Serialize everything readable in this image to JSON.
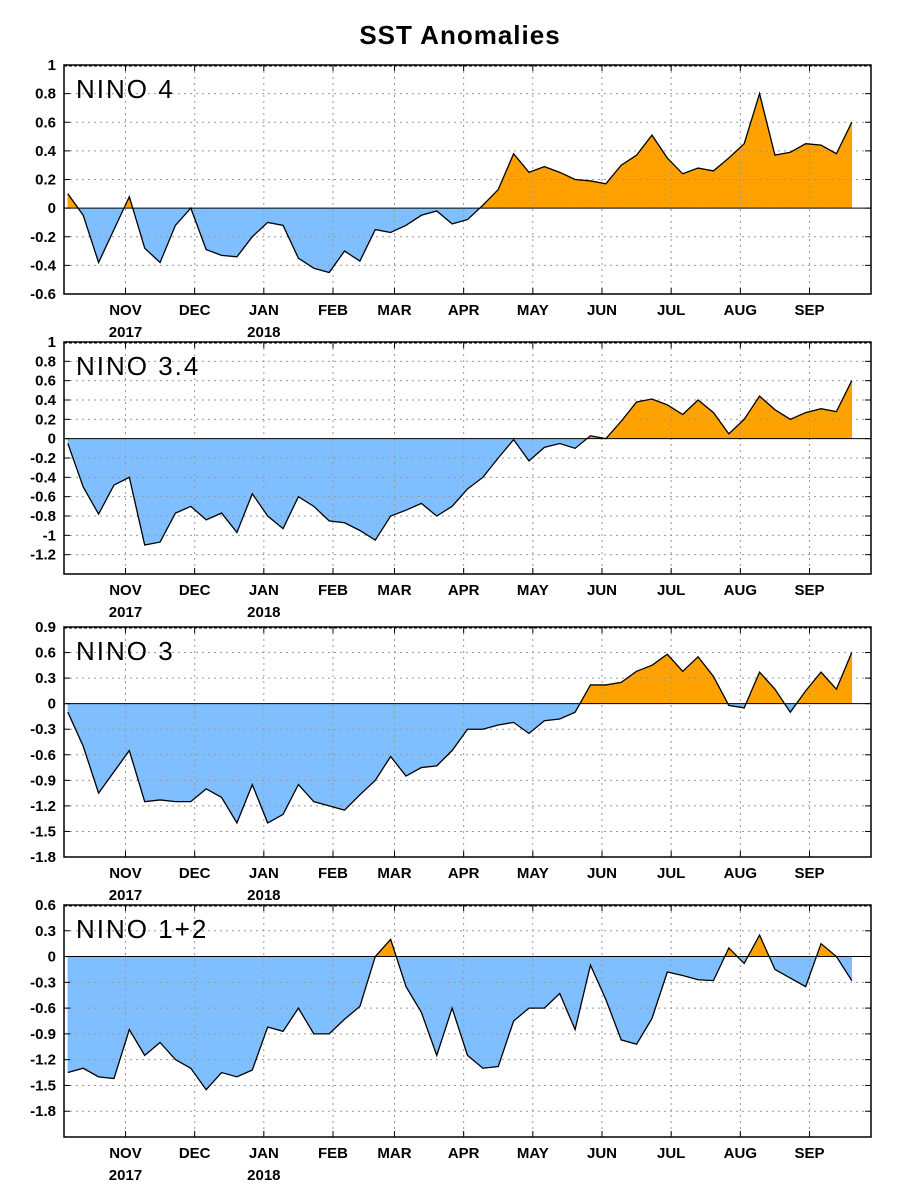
{
  "title": "SST Anomalies",
  "colors": {
    "positive": "#ffa200",
    "negative": "#80bfff",
    "line": "#000000",
    "grid": "#999999"
  },
  "months": [
    {
      "label": "NOV",
      "year": "2017",
      "x": 4
    },
    {
      "label": "DEC",
      "year": "",
      "x": 8.5
    },
    {
      "label": "JAN",
      "year": "2018",
      "x": 13
    },
    {
      "label": "FEB",
      "year": "",
      "x": 17.5
    },
    {
      "label": "MAR",
      "year": "",
      "x": 21.5
    },
    {
      "label": "APR",
      "year": "",
      "x": 26
    },
    {
      "label": "MAY",
      "year": "",
      "x": 30.5
    },
    {
      "label": "JUN",
      "year": "",
      "x": 35
    },
    {
      "label": "JUL",
      "year": "",
      "x": 39.5
    },
    {
      "label": "AUG",
      "year": "",
      "x": 44
    },
    {
      "label": "SEP",
      "year": "",
      "x": 48.5
    }
  ],
  "chart_data": [
    {
      "type": "area",
      "title": "NINO 4",
      "ylim": [
        -0.6,
        1
      ],
      "yticks": [
        "1",
        "0.8",
        "0.6",
        "0.4",
        "0.2",
        "0",
        "-0.2",
        "-0.4",
        "-0.6"
      ],
      "ytick_values": [
        1,
        0.8,
        0.6,
        0.4,
        0.2,
        0,
        -0.2,
        -0.4,
        -0.6
      ],
      "x_range": [
        0,
        52.5
      ],
      "grid": true,
      "values": [
        0.1,
        -0.05,
        -0.38,
        -0.15,
        0.08,
        -0.28,
        -0.38,
        -0.12,
        0.0,
        -0.29,
        -0.33,
        -0.34,
        -0.2,
        -0.1,
        -0.12,
        -0.35,
        -0.42,
        -0.45,
        -0.3,
        -0.37,
        -0.15,
        -0.17,
        -0.12,
        -0.05,
        -0.02,
        -0.11,
        -0.08,
        0.02,
        0.13,
        0.38,
        0.25,
        0.29,
        0.25,
        0.2,
        0.19,
        0.17,
        0.3,
        0.37,
        0.51,
        0.35,
        0.24,
        0.28,
        0.26,
        0.35,
        0.45,
        0.8,
        0.37,
        0.39,
        0.45,
        0.44,
        0.38,
        0.6
      ]
    },
    {
      "type": "area",
      "title": "NINO 3.4",
      "ylim": [
        -1.4,
        1
      ],
      "yticks": [
        "1",
        "0.8",
        "0.6",
        "0.4",
        "0.2",
        "0",
        "-0.2",
        "-0.4",
        "-0.6",
        "-0.8",
        "-1",
        "-1.2"
      ],
      "ytick_values": [
        1,
        0.8,
        0.6,
        0.4,
        0.2,
        0,
        -0.2,
        -0.4,
        -0.6,
        -0.8,
        -1,
        -1.2
      ],
      "x_range": [
        0,
        52.5
      ],
      "grid": true,
      "values": [
        -0.05,
        -0.5,
        -0.78,
        -0.48,
        -0.4,
        -1.1,
        -1.07,
        -0.77,
        -0.7,
        -0.84,
        -0.77,
        -0.97,
        -0.57,
        -0.8,
        -0.93,
        -0.6,
        -0.7,
        -0.85,
        -0.87,
        -0.95,
        -1.05,
        -0.8,
        -0.74,
        -0.67,
        -0.8,
        -0.7,
        -0.52,
        -0.4,
        -0.2,
        -0.01,
        -0.23,
        -0.09,
        -0.05,
        -0.1,
        0.03,
        0.0,
        0.18,
        0.38,
        0.41,
        0.35,
        0.25,
        0.4,
        0.27,
        0.05,
        0.2,
        0.44,
        0.3,
        0.2,
        0.27,
        0.31,
        0.28,
        0.6
      ]
    },
    {
      "type": "area",
      "title": "NINO 3",
      "ylim": [
        -1.8,
        0.9
      ],
      "yticks": [
        "0.9",
        "0.6",
        "0.3",
        "0",
        "-0.3",
        "-0.6",
        "-0.9",
        "-1.2",
        "-1.5",
        "-1.8"
      ],
      "ytick_values": [
        0.9,
        0.6,
        0.3,
        0,
        -0.3,
        -0.6,
        -0.9,
        -1.2,
        -1.5,
        -1.8
      ],
      "x_range": [
        0,
        52.5
      ],
      "grid": true,
      "values": [
        -0.1,
        -0.5,
        -1.05,
        -0.8,
        -0.55,
        -1.15,
        -1.13,
        -1.15,
        -1.15,
        -1.0,
        -1.1,
        -1.4,
        -0.95,
        -1.4,
        -1.3,
        -0.95,
        -1.15,
        -1.2,
        -1.25,
        -1.07,
        -0.9,
        -0.62,
        -0.85,
        -0.75,
        -0.73,
        -0.55,
        -0.3,
        -0.3,
        -0.25,
        -0.22,
        -0.35,
        -0.2,
        -0.18,
        -0.1,
        0.22,
        0.22,
        0.25,
        0.38,
        0.45,
        0.58,
        0.38,
        0.55,
        0.32,
        -0.02,
        -0.05,
        0.37,
        0.17,
        -0.1,
        0.15,
        0.37,
        0.17,
        0.6
      ]
    },
    {
      "type": "area",
      "title": "NINO 1+2",
      "ylim": [
        -2.1,
        0.6
      ],
      "yticks": [
        "0.6",
        "0.3",
        "0",
        "-0.3",
        "-0.6",
        "-0.9",
        "-1.2",
        "-1.5",
        "-1.8"
      ],
      "ytick_values": [
        0.6,
        0.3,
        0,
        -0.3,
        -0.6,
        -0.9,
        -1.2,
        -1.5,
        -1.8
      ],
      "x_range": [
        0,
        52.5
      ],
      "grid": true,
      "values": [
        -1.35,
        -1.3,
        -1.4,
        -1.42,
        -0.85,
        -1.15,
        -1.0,
        -1.2,
        -1.3,
        -1.55,
        -1.35,
        -1.4,
        -1.32,
        -0.82,
        -0.87,
        -0.6,
        -0.9,
        -0.9,
        -0.73,
        -0.58,
        0.0,
        0.2,
        -0.35,
        -0.65,
        -1.15,
        -0.6,
        -1.15,
        -1.3,
        -1.28,
        -0.75,
        -0.6,
        -0.6,
        -0.43,
        -0.85,
        -0.1,
        -0.5,
        -0.97,
        -1.02,
        -0.72,
        -0.18,
        -0.22,
        -0.27,
        -0.28,
        0.1,
        -0.08,
        0.25,
        -0.15,
        -0.25,
        -0.35,
        0.15,
        0.0,
        -0.28
      ]
    }
  ]
}
